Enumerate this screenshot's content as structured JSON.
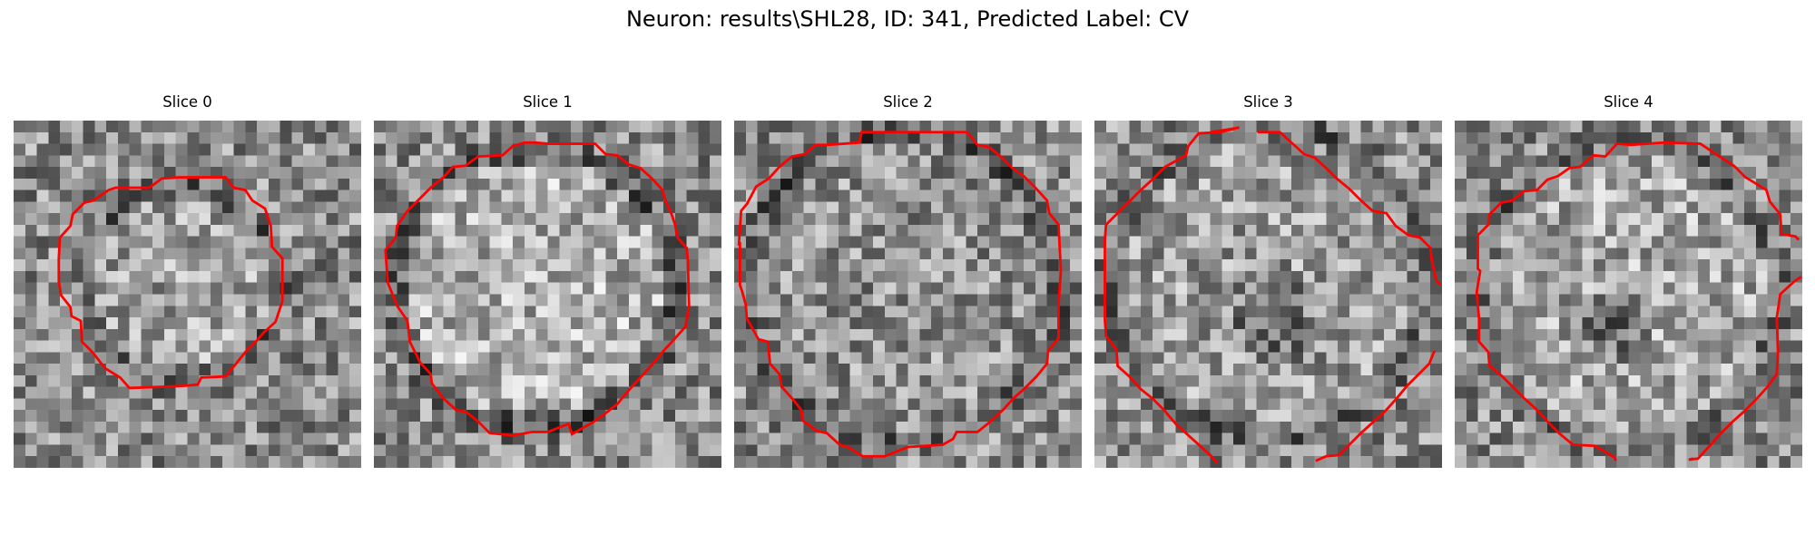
{
  "figure": {
    "title": "Neuron: results\\SHL28, ID: 341, Predicted Label: CV",
    "background_color": "#ffffff",
    "contour_color": "#ff0000"
  },
  "slices": [
    {
      "title": "Slice 0"
    },
    {
      "title": "Slice 1"
    },
    {
      "title": "Slice 2"
    },
    {
      "title": "Slice 3"
    },
    {
      "title": "Slice 4"
    }
  ]
}
